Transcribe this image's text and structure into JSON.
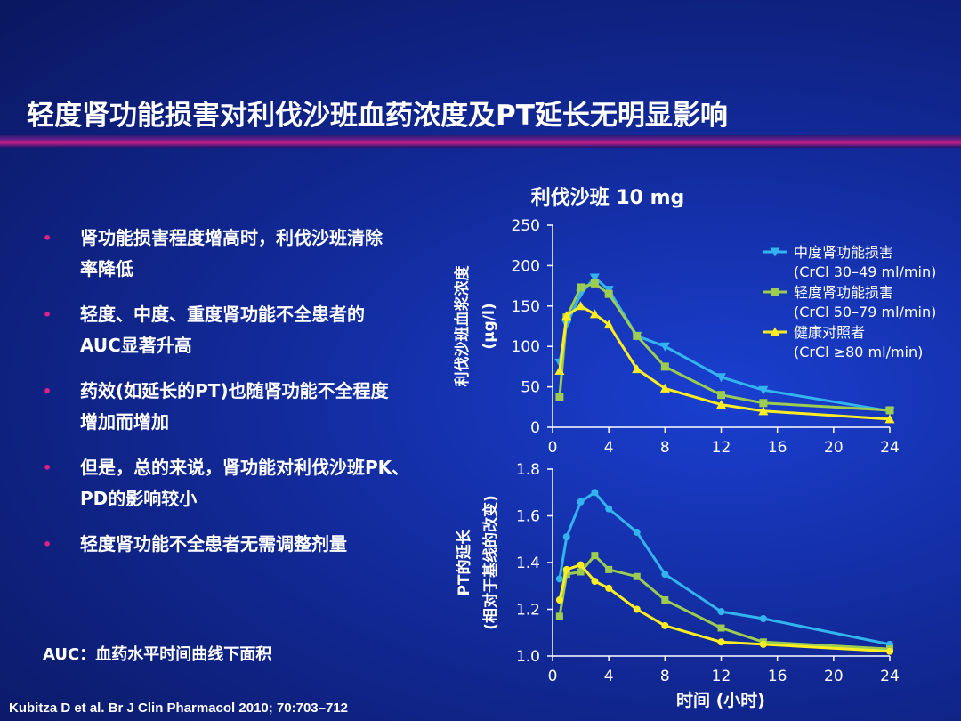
{
  "slide": {
    "title": "轻度肾功能损害对利伐沙班血药浓度及PT延长无明显影响",
    "bullets": [
      {
        "text": "肾功能损害程度增高时，利伐沙班清除率降低",
        "lines": [
          "肾功能损害程度增高时，利伐沙班清除",
          "率降低"
        ]
      },
      {
        "text": "轻度、中度、重度肾功能不全患者的AUC显著升高",
        "lines": [
          "轻度、中度、重度肾功能不全患者的",
          "AUC显著升高"
        ]
      },
      {
        "text": "药效(如延长的PT)也随肾功能不全程度增加而增加",
        "lines": [
          "药效(如延长的PT)也随肾功能不全程度",
          "增加而增加"
        ]
      },
      {
        "text": "但是，总的来说，肾功能对利伐沙班PK、PD的影响较小",
        "lines": [
          "但是，总的来说，肾功能对利伐沙班PK、",
          "PD的影响较小"
        ]
      },
      {
        "text": "轻度肾功能不全患者无需调整剂量",
        "lines": [
          "轻度肾功能不全患者无需调整剂量"
        ]
      }
    ],
    "footnote": "AUC：血药水平时间曲线下面积",
    "citation": "Kubitza D et al. Br J Clin Pharmacol 2010; 70:703–712",
    "bullet_color": "#e0208a"
  },
  "chart_data": [
    {
      "type": "line",
      "title": "利伐沙班 10 mg",
      "ylabel_lines": [
        "利伐沙班血浆浓度",
        "(μg/l)"
      ],
      "xlabel": "",
      "xlim": [
        0,
        24
      ],
      "ylim": [
        0,
        250
      ],
      "xticks": [
        0,
        4,
        8,
        12,
        16,
        20,
        24
      ],
      "yticks": [
        0,
        50,
        100,
        150,
        200,
        250
      ],
      "legend_position": "top-right",
      "series": [
        {
          "name": "中度肾功能损害",
          "sublabel": "(CrCl 30–49 ml/min)",
          "color": "#33b4ee",
          "marker": "triangle-down",
          "x": [
            0.5,
            1,
            2,
            3,
            4,
            6,
            8,
            12,
            15,
            24
          ],
          "y": [
            80,
            127,
            165,
            185,
            170,
            113,
            100,
            62,
            46,
            20
          ]
        },
        {
          "name": "轻度肾功能损害",
          "sublabel": "(CrCl 50–79 ml/min)",
          "color": "#9ccc50",
          "marker": "square",
          "x": [
            0.5,
            1,
            2,
            3,
            4,
            6,
            8,
            12,
            15,
            24
          ],
          "y": [
            37,
            136,
            173,
            178,
            165,
            113,
            75,
            40,
            30,
            21
          ]
        },
        {
          "name": "健康对照者",
          "sublabel": "(CrCl ≥80 ml/min)",
          "color": "#ffee22",
          "marker": "triangle-up",
          "x": [
            0.5,
            1,
            2,
            3,
            4,
            6,
            8,
            12,
            15,
            24
          ],
          "y": [
            70,
            138,
            150,
            140,
            127,
            72,
            48,
            28,
            20,
            10
          ]
        }
      ]
    },
    {
      "type": "line",
      "title": "",
      "ylabel_lines": [
        "PT的延长",
        "(相对于基线的改变)"
      ],
      "xlabel": "时间 (小时)",
      "xlim": [
        0,
        24
      ],
      "ylim": [
        1.0,
        1.8
      ],
      "xticks": [
        0,
        4,
        8,
        12,
        16,
        20,
        24
      ],
      "yticks": [
        1.0,
        1.2,
        1.4,
        1.6,
        1.8
      ],
      "series": [
        {
          "color": "#33b4ee",
          "marker": "circle",
          "x": [
            0.5,
            1,
            2,
            3,
            4,
            6,
            8,
            12,
            15,
            24
          ],
          "y": [
            1.33,
            1.51,
            1.66,
            1.7,
            1.63,
            1.53,
            1.35,
            1.19,
            1.16,
            1.05
          ]
        },
        {
          "color": "#9ccc50",
          "marker": "square",
          "x": [
            0.5,
            1,
            2,
            3,
            4,
            6,
            8,
            12,
            15,
            24
          ],
          "y": [
            1.17,
            1.35,
            1.36,
            1.43,
            1.37,
            1.34,
            1.24,
            1.12,
            1.06,
            1.03
          ]
        },
        {
          "color": "#ffee22",
          "marker": "circle",
          "x": [
            0.5,
            1,
            2,
            3,
            4,
            6,
            8,
            12,
            15,
            24
          ],
          "y": [
            1.24,
            1.37,
            1.39,
            1.32,
            1.29,
            1.2,
            1.13,
            1.06,
            1.05,
            1.02
          ]
        }
      ]
    }
  ]
}
